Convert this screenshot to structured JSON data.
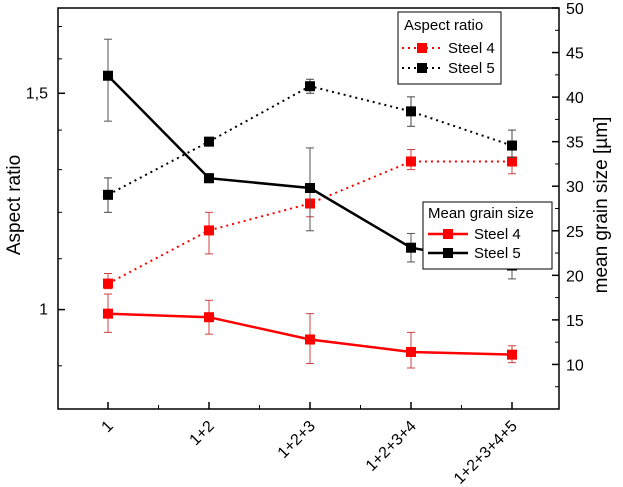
{
  "chart_data": {
    "type": "line",
    "categories": [
      "1",
      "1+2",
      "1+2+3",
      "1+2+3+4",
      "1+2+3+4+5"
    ],
    "left_axis": {
      "label": "Aspect ratio",
      "scale": "log",
      "range": [
        0.83,
        1.76
      ],
      "ticks": [
        1,
        1.5
      ],
      "tick_labels": [
        "1",
        "1,5"
      ]
    },
    "right_axis": {
      "label": "mean grain size [µm]",
      "scale": "linear",
      "range": [
        5,
        50
      ],
      "ticks": [
        10,
        15,
        20,
        25,
        30,
        35,
        40,
        45,
        50
      ],
      "tick_labels": [
        "10",
        "15",
        "20",
        "25",
        "30",
        "35",
        "40",
        "45",
        "50"
      ]
    },
    "legends": [
      {
        "title": "Aspect ratio",
        "entries": [
          "Steel 4",
          "Steel 5"
        ]
      },
      {
        "title": "Mean grain size",
        "entries": [
          "Steel 4",
          "Steel 5"
        ]
      }
    ],
    "series": [
      {
        "name": "Steel 4",
        "group": "Aspect ratio",
        "axis": "left",
        "style": "dotted",
        "color": "#ff0000",
        "values": [
          1.05,
          1.16,
          1.22,
          1.32,
          1.32
        ],
        "err_low": [
          1.04,
          1.11,
          1.19,
          1.3,
          1.29
        ],
        "err_high": [
          1.07,
          1.2,
          1.22,
          1.35,
          1.35
        ]
      },
      {
        "name": "Steel 5",
        "group": "Aspect ratio",
        "axis": "left",
        "style": "dotted",
        "color": "#000000",
        "values": [
          1.24,
          1.37,
          1.52,
          1.45,
          1.36
        ],
        "err_low": [
          1.2,
          1.36,
          1.5,
          1.41,
          1.33
        ],
        "err_high": [
          1.28,
          1.38,
          1.54,
          1.49,
          1.4
        ]
      },
      {
        "name": "Steel 4",
        "group": "Mean grain size",
        "axis": "right",
        "style": "solid",
        "color": "#ff0000",
        "values": [
          15.7,
          15.3,
          12.8,
          11.4,
          11.1
        ],
        "err_low": [
          13.6,
          13.4,
          10.1,
          9.6,
          10.2
        ],
        "err_high": [
          17.9,
          17.2,
          15.7,
          13.6,
          12.1
        ]
      },
      {
        "name": "Steel 5",
        "group": "Mean grain size",
        "axis": "right",
        "style": "solid",
        "color": "#000000",
        "values": [
          42.4,
          30.9,
          29.8,
          23.1,
          21.1
        ],
        "err_low": [
          37.3,
          30.4,
          25.0,
          21.5,
          19.6
        ],
        "err_high": [
          46.5,
          31.4,
          34.3,
          24.7,
          22.5
        ]
      }
    ]
  }
}
